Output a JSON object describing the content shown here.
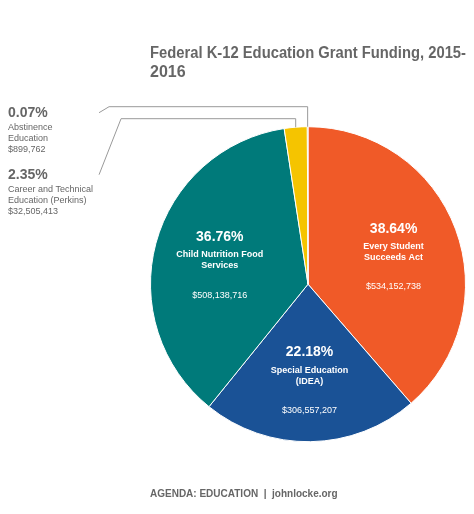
{
  "chart_data": {
    "type": "pie",
    "title": "Federal K-12 Education Grant Funding, 2015-\n2016",
    "footer": "AGENDA: EDUCATION  |  johnlocke.org",
    "categories": [
      "Every Student\nSucceeds Act",
      "Special Education\n(IDEA)",
      "Child Nutrition Food\nServices",
      "Career and Technical\nEducation (Perkins)",
      "Abstinence\nEducation"
    ],
    "values": [
      38.64,
      22.18,
      36.76,
      2.35,
      0.07
    ],
    "value_labels": [
      "38.64%",
      "22.18%",
      "36.76%",
      "2.35%",
      "0.07%"
    ],
    "amounts": [
      534152738,
      306557207,
      508138716,
      32505413,
      899762
    ],
    "amount_labels": [
      "$534,152,738",
      "$306,557,207",
      "$508,138,716",
      "$32,505,413",
      "$899,762"
    ],
    "colors": [
      "#f05a28",
      "#1a5296",
      "#007a7a",
      "#f5c400",
      "#1a6e30"
    ],
    "data_labels": true
  }
}
